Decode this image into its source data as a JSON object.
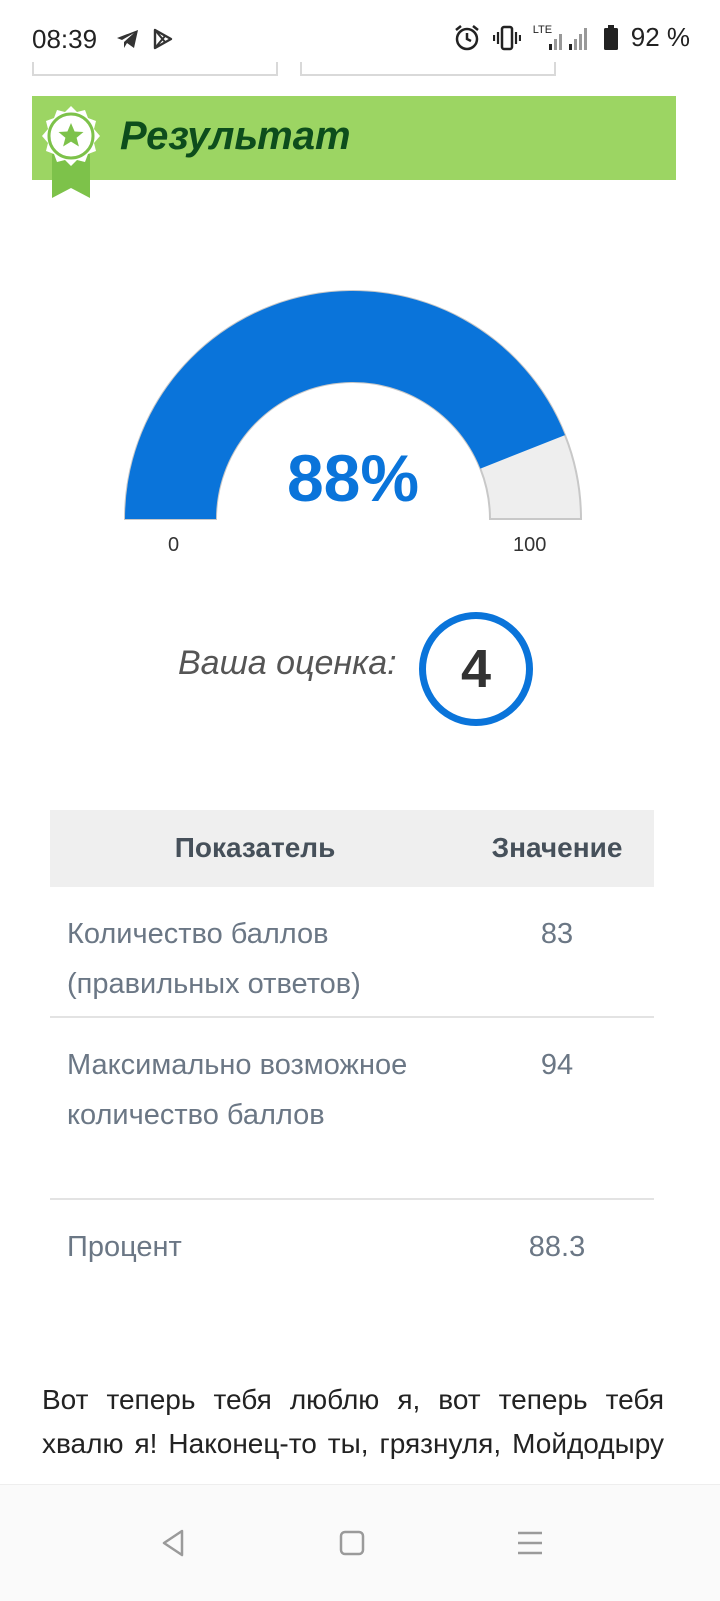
{
  "status_bar": {
    "time": "08:39",
    "network": "LTE",
    "battery": "92 %",
    "icons": [
      "telegram-icon",
      "play-store-icon",
      "alarm-icon",
      "vibrate-icon",
      "signal-icon",
      "battery-icon"
    ]
  },
  "banner": {
    "title": "Результат",
    "color": "#9cd563",
    "title_color": "#0d4d1c"
  },
  "gauge": {
    "value_percent": 88,
    "display": "88%",
    "min_label": "0",
    "max_label": "100",
    "fill_color": "#0a74da",
    "track_color": "#eeeeee"
  },
  "grade": {
    "label": "Ваша оценка:",
    "value": "4"
  },
  "table": {
    "headers": [
      "Показатель",
      "Значение"
    ],
    "rows": [
      {
        "name": "Количество баллов (правильных ответов)",
        "value": "83"
      },
      {
        "name": "Максимально возможное количество баллов",
        "value": "94"
      },
      {
        "name": "Процент",
        "value": "88.3"
      }
    ]
  },
  "poem": {
    "text": "Вот теперь тебя люблю я, вот теперь тебя хвалю я! Наконец-то ты, грязнуля, Мойдодыру угодил!"
  },
  "nav_bar": {
    "buttons": [
      "back-icon",
      "home-icon",
      "menu-icon"
    ]
  }
}
